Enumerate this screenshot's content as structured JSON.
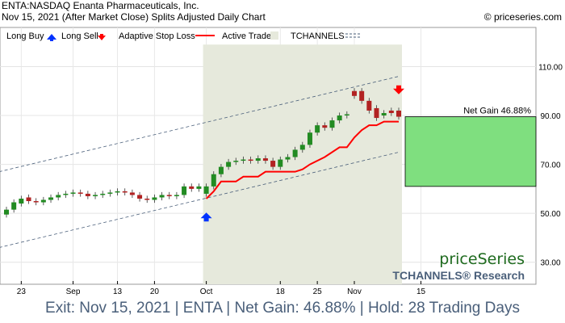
{
  "header": {
    "title": "ENTA:NASDAQ Enanta Pharmaceuticals, Inc.",
    "subtitle": "Nov 15, 2021 (After Market Close)  Splits Adjusted Daily Chart",
    "copyright": "© priceseries.com"
  },
  "legend": {
    "long_buy": "Long Buy",
    "long_sell": "Long Sell",
    "stop_loss": "Adaptive Stop Loss",
    "active_trade": "Active Trade",
    "tchannels": "TCHANNELS"
  },
  "branding": {
    "logo": "priceSeries",
    "research": "TCHANNELS® Research"
  },
  "gain_label": "Net Gain 46.88%",
  "footer": "Exit: Nov 15, 2021 | ENTA | Net Gain: 46.88% | Hold: 28 Trading Days",
  "colors": {
    "up": "#228b22",
    "down": "#b22222",
    "stop": "#ff0000",
    "trade_bg": "#e6e9dc",
    "gain_box": "#7fdf7f",
    "buy_arrow": "#0033ff",
    "sell_arrow": "#ff0000"
  },
  "chart_data": {
    "type": "candlestick",
    "yticks": [
      "110.00",
      "90.00",
      "70.00",
      "50.00",
      "30.00"
    ],
    "ylim": [
      21,
      126
    ],
    "xticks": [
      "23",
      "Sep",
      "13",
      "20",
      "Oct",
      "18",
      "25",
      "Nov",
      "15"
    ],
    "candles": [
      {
        "o": 49.5,
        "c": 51.5
      },
      {
        "o": 51.5,
        "c": 54.5
      },
      {
        "o": 54.0,
        "c": 56.0
      },
      {
        "o": 56.5,
        "c": 55.0
      },
      {
        "o": 55.0,
        "c": 54.5
      },
      {
        "o": 54.5,
        "c": 55.5
      },
      {
        "o": 55.5,
        "c": 56.5
      },
      {
        "o": 56.5,
        "c": 57.5
      },
      {
        "o": 57.5,
        "c": 58.0
      },
      {
        "o": 58.0,
        "c": 58.5
      },
      {
        "o": 58.5,
        "c": 58.0
      },
      {
        "o": 58.0,
        "c": 57.0
      },
      {
        "o": 57.0,
        "c": 57.5
      },
      {
        "o": 57.5,
        "c": 58.0
      },
      {
        "o": 58.0,
        "c": 58.5
      },
      {
        "o": 58.5,
        "c": 59.0
      },
      {
        "o": 59.0,
        "c": 58.5
      },
      {
        "o": 58.5,
        "c": 57.5
      },
      {
        "o": 57.5,
        "c": 56.0
      },
      {
        "o": 56.0,
        "c": 55.5
      },
      {
        "o": 55.5,
        "c": 56.5
      },
      {
        "o": 56.5,
        "c": 57.5
      },
      {
        "o": 57.5,
        "c": 57.0
      },
      {
        "o": 57.0,
        "c": 57.5
      },
      {
        "o": 57.5,
        "c": 61.0
      },
      {
        "o": 61.0,
        "c": 60.0
      },
      {
        "o": 60.0,
        "c": 61.0
      },
      {
        "o": 58.0,
        "c": 61.0
      },
      {
        "o": 61.0,
        "c": 66.0
      },
      {
        "o": 66.0,
        "c": 69.0
      },
      {
        "o": 69.0,
        "c": 71.0
      },
      {
        "o": 71.0,
        "c": 71.5
      },
      {
        "o": 71.5,
        "c": 72.0
      },
      {
        "o": 72.0,
        "c": 71.5
      },
      {
        "o": 71.5,
        "c": 72.5
      },
      {
        "o": 72.5,
        "c": 71.5
      },
      {
        "o": 71.5,
        "c": 69.0
      },
      {
        "o": 69.0,
        "c": 72.0
      },
      {
        "o": 72.0,
        "c": 73.0
      },
      {
        "o": 73.0,
        "c": 76.0
      },
      {
        "o": 76.0,
        "c": 78.0
      },
      {
        "o": 78.0,
        "c": 83.0
      },
      {
        "o": 83.0,
        "c": 86.0
      },
      {
        "o": 86.0,
        "c": 85.0
      },
      {
        "o": 85.0,
        "c": 88.0
      },
      {
        "o": 88.0,
        "c": 90.0
      },
      {
        "o": 90.0,
        "c": 90.5
      },
      {
        "o": 100.0,
        "c": 98.0
      },
      {
        "o": 100.0,
        "c": 96.0
      },
      {
        "o": 96.0,
        "c": 92.0
      },
      {
        "o": 93.0,
        "c": 89.0
      },
      {
        "o": 90.0,
        "c": 91.0
      },
      {
        "o": 92.0,
        "c": 91.0
      },
      {
        "o": 92.0,
        "c": 89.5
      }
    ],
    "stop_loss": [
      {
        "i": 27,
        "v": 56.0
      },
      {
        "i": 28,
        "v": 59.0
      },
      {
        "i": 29,
        "v": 63.0
      },
      {
        "i": 31,
        "v": 63.0
      },
      {
        "i": 32,
        "v": 65.0
      },
      {
        "i": 34,
        "v": 65.0
      },
      {
        "i": 35,
        "v": 67.0
      },
      {
        "i": 39,
        "v": 67.0
      },
      {
        "i": 40,
        "v": 68.0
      },
      {
        "i": 41,
        "v": 70.0
      },
      {
        "i": 43,
        "v": 73.0
      },
      {
        "i": 45,
        "v": 77.0
      },
      {
        "i": 46,
        "v": 77.0
      },
      {
        "i": 47,
        "v": 81.0
      },
      {
        "i": 48,
        "v": 84.0
      },
      {
        "i": 49,
        "v": 86.0
      },
      {
        "i": 50,
        "v": 86.0
      },
      {
        "i": 51,
        "v": 87.5
      },
      {
        "i": 53,
        "v": 87.5
      }
    ],
    "trade": {
      "start_index": 27,
      "end_index": 53,
      "entry": 61.0,
      "exit": 89.5,
      "buy_marker": 48,
      "sell_marker": 101
    },
    "channel_upper": [
      {
        "i": -1,
        "v": 67.0
      },
      {
        "i": 53,
        "v": 106.0
      }
    ],
    "channel_lower": [
      {
        "i": -1,
        "v": 36.0
      },
      {
        "i": 53,
        "v": 75.0
      }
    ]
  }
}
